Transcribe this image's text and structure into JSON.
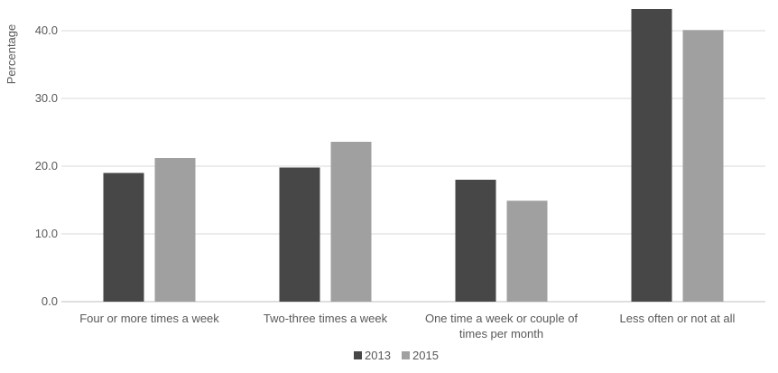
{
  "chart_data": {
    "type": "bar",
    "title": "",
    "xlabel": "",
    "ylabel": "Percentage",
    "ylim": [
      0,
      45
    ],
    "yticks": [
      "0.0",
      "10.0",
      "20.0",
      "30.0",
      "40.0"
    ],
    "grid": true,
    "legend_position": "bottom",
    "categories": [
      [
        "Four or more times a week"
      ],
      [
        "Two-three times a week"
      ],
      [
        "One time a week or couple of",
        "times per month"
      ],
      [
        "Less often or not at all"
      ]
    ],
    "series": [
      {
        "name": "2013",
        "color": "#474747",
        "values": [
          19.0,
          19.8,
          18.0,
          43.2
        ]
      },
      {
        "name": "2015",
        "color": "#a0a0a0",
        "values": [
          21.2,
          23.6,
          14.9,
          40.1
        ]
      }
    ]
  }
}
